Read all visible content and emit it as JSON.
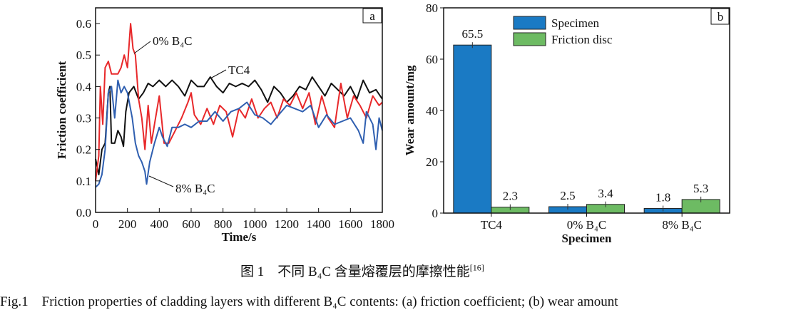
{
  "chart_data": [
    {
      "type": "line",
      "panel_label": "a",
      "xlabel": "Time/s",
      "ylabel": "Friction coefficient",
      "xlim": [
        0,
        1800
      ],
      "ylim": [
        0,
        0.65
      ],
      "xticks": [
        0,
        200,
        400,
        600,
        800,
        1000,
        1200,
        1400,
        1600,
        1800
      ],
      "yticks": [
        0.0,
        0.1,
        0.2,
        0.3,
        0.4,
        0.5,
        0.6
      ],
      "ytick_labels": [
        "0.0",
        "0.1",
        "0.2",
        "0.3",
        "0.4",
        "0.5",
        "0.6"
      ],
      "grid": false,
      "series": [
        {
          "name": "TC4",
          "color": "#111111",
          "annotation": "TC4",
          "x": [
            0,
            20,
            40,
            60,
            80,
            90,
            100,
            120,
            140,
            160,
            175,
            190,
            210,
            240,
            270,
            300,
            330,
            360,
            400,
            440,
            480,
            520,
            560,
            600,
            640,
            680,
            720,
            760,
            800,
            840,
            880,
            920,
            960,
            1000,
            1040,
            1080,
            1120,
            1160,
            1200,
            1240,
            1280,
            1320,
            1360,
            1400,
            1440,
            1480,
            1520,
            1560,
            1600,
            1640,
            1680,
            1720,
            1760,
            1800
          ],
          "y": [
            0.17,
            0.12,
            0.2,
            0.22,
            0.38,
            0.4,
            0.22,
            0.22,
            0.26,
            0.24,
            0.21,
            0.32,
            0.38,
            0.4,
            0.36,
            0.38,
            0.41,
            0.4,
            0.42,
            0.4,
            0.42,
            0.4,
            0.37,
            0.42,
            0.4,
            0.4,
            0.43,
            0.4,
            0.38,
            0.41,
            0.4,
            0.41,
            0.4,
            0.42,
            0.39,
            0.35,
            0.4,
            0.38,
            0.35,
            0.37,
            0.4,
            0.39,
            0.43,
            0.4,
            0.37,
            0.41,
            0.39,
            0.37,
            0.4,
            0.36,
            0.42,
            0.38,
            0.39,
            0.36
          ]
        },
        {
          "name": "0% B4C",
          "color": "#e8282a",
          "annotation": "0% B4C",
          "x": [
            0,
            20,
            30,
            45,
            60,
            80,
            100,
            120,
            140,
            160,
            180,
            200,
            220,
            235,
            250,
            270,
            290,
            310,
            330,
            350,
            370,
            400,
            430,
            460,
            500,
            540,
            580,
            600,
            620,
            660,
            700,
            740,
            780,
            820,
            860,
            900,
            940,
            980,
            1020,
            1060,
            1100,
            1140,
            1180,
            1220,
            1260,
            1300,
            1340,
            1380,
            1420,
            1460,
            1500,
            1540,
            1580,
            1620,
            1660,
            1700,
            1740,
            1780,
            1800
          ],
          "y": [
            0.1,
            0.18,
            0.4,
            0.28,
            0.46,
            0.48,
            0.44,
            0.44,
            0.44,
            0.46,
            0.5,
            0.46,
            0.6,
            0.52,
            0.5,
            0.36,
            0.3,
            0.2,
            0.34,
            0.22,
            0.28,
            0.37,
            0.22,
            0.22,
            0.26,
            0.3,
            0.35,
            0.38,
            0.31,
            0.28,
            0.33,
            0.28,
            0.34,
            0.32,
            0.24,
            0.33,
            0.3,
            0.36,
            0.3,
            0.33,
            0.35,
            0.3,
            0.36,
            0.34,
            0.38,
            0.33,
            0.38,
            0.28,
            0.37,
            0.3,
            0.27,
            0.41,
            0.3,
            0.37,
            0.34,
            0.3,
            0.37,
            0.34,
            0.35
          ]
        },
        {
          "name": "8% B4C",
          "color": "#2f5fb0",
          "annotation": "8% B4C",
          "x": [
            0,
            20,
            40,
            60,
            80,
            100,
            120,
            140,
            160,
            180,
            200,
            230,
            250,
            270,
            290,
            310,
            320,
            340,
            370,
            400,
            420,
            450,
            480,
            520,
            560,
            600,
            650,
            700,
            750,
            800,
            850,
            900,
            950,
            1000,
            1050,
            1100,
            1150,
            1200,
            1250,
            1300,
            1350,
            1400,
            1450,
            1500,
            1550,
            1600,
            1650,
            1680,
            1700,
            1740,
            1760,
            1780,
            1800
          ],
          "y": [
            0.08,
            0.09,
            0.12,
            0.2,
            0.38,
            0.4,
            0.3,
            0.42,
            0.38,
            0.4,
            0.38,
            0.3,
            0.22,
            0.18,
            0.16,
            0.13,
            0.09,
            0.16,
            0.22,
            0.27,
            0.24,
            0.21,
            0.27,
            0.27,
            0.28,
            0.27,
            0.29,
            0.29,
            0.32,
            0.29,
            0.32,
            0.33,
            0.35,
            0.31,
            0.3,
            0.28,
            0.31,
            0.34,
            0.33,
            0.32,
            0.34,
            0.27,
            0.31,
            0.28,
            0.29,
            0.3,
            0.26,
            0.22,
            0.32,
            0.28,
            0.2,
            0.3,
            0.26
          ]
        }
      ]
    },
    {
      "type": "bar",
      "panel_label": "b",
      "xlabel": "Specimen",
      "ylabel": "Wear amount/mg",
      "ylim": [
        0,
        80
      ],
      "yticks": [
        0,
        20,
        40,
        60,
        80
      ],
      "categories": [
        "TC4",
        "0% B4C",
        "8% B4C"
      ],
      "legend_position": "top-center",
      "grid": false,
      "series": [
        {
          "name": "Specimen",
          "color": "#1a7ac4",
          "values": [
            65.5,
            2.5,
            1.8
          ],
          "labels": [
            "65.5",
            "2.5",
            "1.8"
          ]
        },
        {
          "name": "Friction disc",
          "color": "#6dbb63",
          "values": [
            2.3,
            3.4,
            5.3
          ],
          "labels": [
            "2.3",
            "3.4",
            "5.3"
          ]
        }
      ]
    }
  ],
  "caption": {
    "cn_prefix": "图 1",
    "cn_text": "不同 B₄C 含量熔覆层的摩擦性能",
    "cn_ref": "[16]",
    "en_prefix": "Fig.1",
    "en_text": "Friction properties of cladding layers with different B₄C contents: (a) friction coefficient; (b) wear amount"
  }
}
